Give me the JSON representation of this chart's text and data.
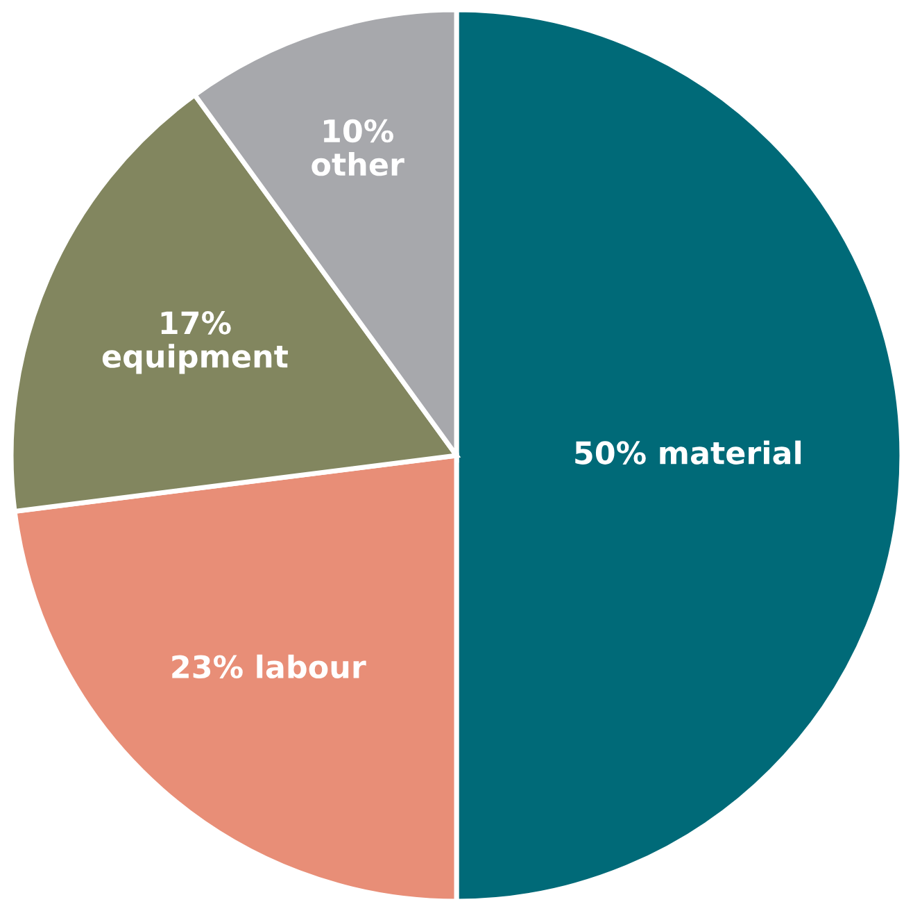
{
  "chart_data": {
    "type": "pie",
    "categories": [
      "material",
      "labour",
      "equipment",
      "other"
    ],
    "values": [
      50,
      23,
      17,
      10
    ],
    "value_labels": [
      "50%",
      "23%",
      "17%",
      "10%"
    ],
    "colors": [
      "#006a78",
      "#e88e77",
      "#82865f",
      "#a7a8ac"
    ],
    "legend": false
  }
}
